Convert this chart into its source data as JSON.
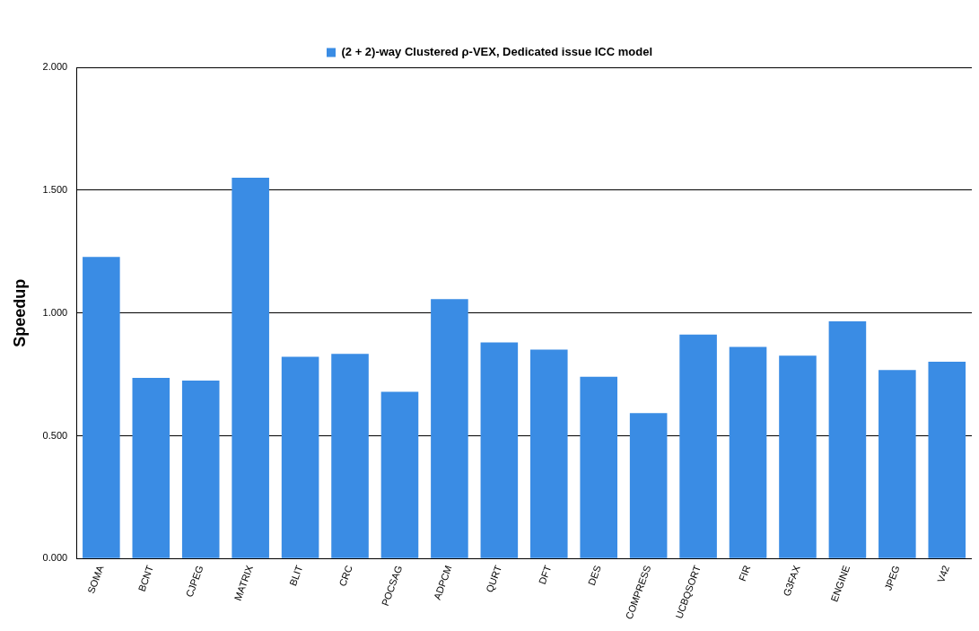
{
  "chart_data": {
    "type": "bar",
    "ylabel": "Speedup",
    "categories": [
      "SOMA",
      "BCNT",
      "CJPEG",
      "MATRIX",
      "BLIT",
      "CRC",
      "POCSAG",
      "ADPCM",
      "QURT",
      "DFT",
      "DES",
      "COMPRESS",
      "UCBQSORT",
      "FIR",
      "G3FAX",
      "ENGINE",
      "JPEG",
      "V42"
    ],
    "series": [
      {
        "name": "(2 + 2)-way Clustered ρ-VEX, Dedicated issue ICC model",
        "color": "#3a8ce4",
        "values": [
          1.228,
          0.736,
          0.725,
          1.551,
          0.822,
          0.833,
          0.679,
          1.056,
          0.88,
          0.851,
          0.74,
          0.592,
          0.912,
          0.862,
          0.826,
          0.966,
          0.768,
          0.801
        ]
      }
    ],
    "ylim": [
      0,
      2
    ],
    "yticks": [
      {
        "value": 0,
        "label": "0.000"
      },
      {
        "value": 0.5,
        "label": "0.500"
      },
      {
        "value": 1,
        "label": "1.000"
      },
      {
        "value": 1.5,
        "label": "1.500"
      },
      {
        "value": 2,
        "label": "2.000"
      }
    ],
    "grid": "y",
    "legend": "top"
  }
}
